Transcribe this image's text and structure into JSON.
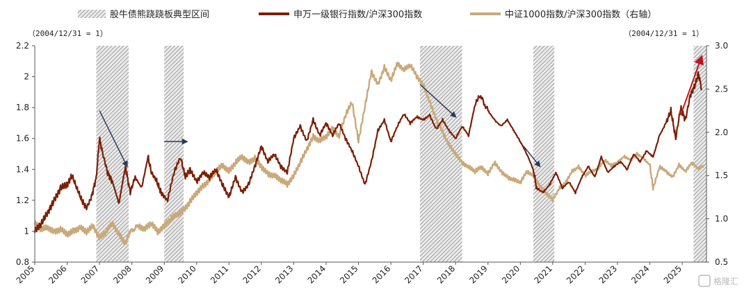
{
  "chart_data": {
    "type": "line",
    "title": "",
    "legend": {
      "placement": "top",
      "shading_label": "股牛债熊跷跷板典型区间",
      "items": [
        {
          "name": "申万一级银行指数/沪深300指数",
          "color": "#7a1f06"
        },
        {
          "name": "中证1000指数/沪深300指数（右轴）",
          "color": "#c9a97a"
        }
      ]
    },
    "left_axis_note": "（2004/12/31 = 1）",
    "right_axis_note": "（2004/12/31 = 1）",
    "x_range": [
      2005,
      2025.75
    ],
    "x_ticks": [
      "2005",
      "2006",
      "2007",
      "2008",
      "2009",
      "2010",
      "2011",
      "2012",
      "2013",
      "2014",
      "2015",
      "2016",
      "2017",
      "2018",
      "2019",
      "2020",
      "2021",
      "2022",
      "2023",
      "2024",
      "2025"
    ],
    "y_left": {
      "range": [
        0.8,
        2.2
      ],
      "ticks": [
        "0.8",
        "1",
        "1.2",
        "1.4",
        "1.6",
        "1.8",
        "2",
        "2.2"
      ]
    },
    "y_right": {
      "range": [
        0.5,
        3.0
      ],
      "ticks": [
        "0.5",
        "1.0",
        "1.5",
        "2.0",
        "2.5",
        "3.0"
      ]
    },
    "grid": false,
    "shaded_periods": [
      [
        2006.9,
        2007.9
      ],
      [
        2009.0,
        2009.6
      ],
      [
        2016.9,
        2018.2
      ],
      [
        2020.4,
        2021.05
      ],
      [
        2025.35,
        2025.75
      ]
    ],
    "series": [
      {
        "name": "申万一级银行指数/沪深300指数",
        "axis": "left",
        "color": "#7a1f06",
        "points": [
          [
            2005.0,
            1.0
          ],
          [
            2005.2,
            1.05
          ],
          [
            2005.4,
            1.12
          ],
          [
            2005.6,
            1.2
          ],
          [
            2005.8,
            1.28
          ],
          [
            2006.0,
            1.3
          ],
          [
            2006.15,
            1.36
          ],
          [
            2006.3,
            1.28
          ],
          [
            2006.45,
            1.2
          ],
          [
            2006.6,
            1.15
          ],
          [
            2006.75,
            1.22
          ],
          [
            2006.9,
            1.35
          ],
          [
            2007.0,
            1.6
          ],
          [
            2007.1,
            1.5
          ],
          [
            2007.25,
            1.38
          ],
          [
            2007.4,
            1.32
          ],
          [
            2007.6,
            1.18
          ],
          [
            2007.8,
            1.42
          ],
          [
            2007.95,
            1.25
          ],
          [
            2008.1,
            1.35
          ],
          [
            2008.3,
            1.28
          ],
          [
            2008.5,
            1.48
          ],
          [
            2008.6,
            1.38
          ],
          [
            2008.75,
            1.33
          ],
          [
            2008.9,
            1.25
          ],
          [
            2009.1,
            1.2
          ],
          [
            2009.3,
            1.38
          ],
          [
            2009.5,
            1.48
          ],
          [
            2009.65,
            1.35
          ],
          [
            2009.8,
            1.4
          ],
          [
            2010.0,
            1.32
          ],
          [
            2010.2,
            1.38
          ],
          [
            2010.4,
            1.35
          ],
          [
            2010.6,
            1.4
          ],
          [
            2010.8,
            1.3
          ],
          [
            2011.0,
            1.22
          ],
          [
            2011.2,
            1.35
          ],
          [
            2011.4,
            1.25
          ],
          [
            2011.6,
            1.3
          ],
          [
            2011.8,
            1.42
          ],
          [
            2012.0,
            1.55
          ],
          [
            2012.2,
            1.45
          ],
          [
            2012.4,
            1.5
          ],
          [
            2012.6,
            1.42
          ],
          [
            2012.8,
            1.38
          ],
          [
            2013.0,
            1.6
          ],
          [
            2013.2,
            1.68
          ],
          [
            2013.4,
            1.58
          ],
          [
            2013.6,
            1.72
          ],
          [
            2013.8,
            1.62
          ],
          [
            2014.0,
            1.7
          ],
          [
            2014.2,
            1.62
          ],
          [
            2014.4,
            1.7
          ],
          [
            2014.6,
            1.6
          ],
          [
            2014.8,
            1.52
          ],
          [
            2015.0,
            1.42
          ],
          [
            2015.2,
            1.3
          ],
          [
            2015.4,
            1.45
          ],
          [
            2015.6,
            1.65
          ],
          [
            2015.8,
            1.72
          ],
          [
            2016.0,
            1.58
          ],
          [
            2016.2,
            1.68
          ],
          [
            2016.4,
            1.76
          ],
          [
            2016.6,
            1.7
          ],
          [
            2016.8,
            1.74
          ],
          [
            2017.0,
            1.72
          ],
          [
            2017.2,
            1.75
          ],
          [
            2017.4,
            1.66
          ],
          [
            2017.6,
            1.72
          ],
          [
            2017.8,
            1.65
          ],
          [
            2018.0,
            1.6
          ],
          [
            2018.2,
            1.68
          ],
          [
            2018.4,
            1.62
          ],
          [
            2018.6,
            1.82
          ],
          [
            2018.75,
            1.88
          ],
          [
            2019.0,
            1.78
          ],
          [
            2019.2,
            1.72
          ],
          [
            2019.4,
            1.68
          ],
          [
            2019.6,
            1.72
          ],
          [
            2019.8,
            1.65
          ],
          [
            2020.0,
            1.58
          ],
          [
            2020.2,
            1.5
          ],
          [
            2020.4,
            1.4
          ],
          [
            2020.5,
            1.28
          ],
          [
            2020.7,
            1.25
          ],
          [
            2020.9,
            1.3
          ],
          [
            2021.1,
            1.38
          ],
          [
            2021.3,
            1.28
          ],
          [
            2021.5,
            1.32
          ],
          [
            2021.7,
            1.25
          ],
          [
            2021.9,
            1.35
          ],
          [
            2022.1,
            1.42
          ],
          [
            2022.3,
            1.35
          ],
          [
            2022.5,
            1.48
          ],
          [
            2022.7,
            1.38
          ],
          [
            2022.9,
            1.42
          ],
          [
            2023.1,
            1.45
          ],
          [
            2023.3,
            1.4
          ],
          [
            2023.5,
            1.5
          ],
          [
            2023.7,
            1.45
          ],
          [
            2023.9,
            1.52
          ],
          [
            2024.1,
            1.48
          ],
          [
            2024.3,
            1.62
          ],
          [
            2024.5,
            1.7
          ],
          [
            2024.65,
            1.78
          ],
          [
            2024.8,
            1.6
          ],
          [
            2024.95,
            1.8
          ],
          [
            2025.1,
            1.72
          ],
          [
            2025.25,
            1.88
          ],
          [
            2025.4,
            1.95
          ],
          [
            2025.5,
            2.02
          ],
          [
            2025.6,
            1.92
          ]
        ]
      },
      {
        "name": "中证1000指数/沪深300指数（右轴）",
        "axis": "right",
        "color": "#c9a97a",
        "points": [
          [
            2005.0,
            0.95
          ],
          [
            2005.2,
            0.88
          ],
          [
            2005.4,
            0.9
          ],
          [
            2005.6,
            0.85
          ],
          [
            2005.8,
            0.88
          ],
          [
            2006.0,
            0.82
          ],
          [
            2006.2,
            0.86
          ],
          [
            2006.4,
            0.9
          ],
          [
            2006.6,
            0.85
          ],
          [
            2006.8,
            0.92
          ],
          [
            2007.0,
            0.78
          ],
          [
            2007.2,
            0.85
          ],
          [
            2007.4,
            0.95
          ],
          [
            2007.6,
            0.82
          ],
          [
            2007.8,
            0.72
          ],
          [
            2007.95,
            0.85
          ],
          [
            2008.2,
            0.92
          ],
          [
            2008.4,
            0.88
          ],
          [
            2008.6,
            0.95
          ],
          [
            2008.8,
            0.85
          ],
          [
            2009.0,
            0.92
          ],
          [
            2009.2,
            1.0
          ],
          [
            2009.4,
            1.05
          ],
          [
            2009.6,
            1.1
          ],
          [
            2009.8,
            1.2
          ],
          [
            2010.0,
            1.3
          ],
          [
            2010.2,
            1.38
          ],
          [
            2010.4,
            1.45
          ],
          [
            2010.6,
            1.55
          ],
          [
            2010.8,
            1.62
          ],
          [
            2011.0,
            1.55
          ],
          [
            2011.2,
            1.65
          ],
          [
            2011.4,
            1.72
          ],
          [
            2011.6,
            1.65
          ],
          [
            2011.8,
            1.7
          ],
          [
            2012.0,
            1.6
          ],
          [
            2012.2,
            1.52
          ],
          [
            2012.4,
            1.5
          ],
          [
            2012.6,
            1.45
          ],
          [
            2012.8,
            1.4
          ],
          [
            2013.0,
            1.5
          ],
          [
            2013.2,
            1.65
          ],
          [
            2013.4,
            1.8
          ],
          [
            2013.6,
            1.95
          ],
          [
            2013.8,
            1.9
          ],
          [
            2014.0,
            1.95
          ],
          [
            2014.2,
            2.05
          ],
          [
            2014.4,
            1.95
          ],
          [
            2014.6,
            2.2
          ],
          [
            2014.8,
            2.35
          ],
          [
            2015.0,
            1.9
          ],
          [
            2015.2,
            2.3
          ],
          [
            2015.4,
            2.7
          ],
          [
            2015.6,
            2.55
          ],
          [
            2015.8,
            2.75
          ],
          [
            2016.0,
            2.6
          ],
          [
            2016.2,
            2.8
          ],
          [
            2016.4,
            2.72
          ],
          [
            2016.6,
            2.78
          ],
          [
            2016.8,
            2.65
          ],
          [
            2017.0,
            2.55
          ],
          [
            2017.2,
            2.35
          ],
          [
            2017.4,
            2.15
          ],
          [
            2017.6,
            2.0
          ],
          [
            2017.8,
            1.85
          ],
          [
            2018.0,
            1.75
          ],
          [
            2018.2,
            1.65
          ],
          [
            2018.4,
            1.6
          ],
          [
            2018.6,
            1.55
          ],
          [
            2018.8,
            1.6
          ],
          [
            2019.0,
            1.52
          ],
          [
            2019.2,
            1.65
          ],
          [
            2019.4,
            1.55
          ],
          [
            2019.6,
            1.48
          ],
          [
            2019.8,
            1.45
          ],
          [
            2020.0,
            1.42
          ],
          [
            2020.2,
            1.55
          ],
          [
            2020.4,
            1.5
          ],
          [
            2020.6,
            1.38
          ],
          [
            2020.8,
            1.3
          ],
          [
            2021.0,
            1.22
          ],
          [
            2021.2,
            1.35
          ],
          [
            2021.4,
            1.42
          ],
          [
            2021.6,
            1.55
          ],
          [
            2021.8,
            1.6
          ],
          [
            2022.0,
            1.5
          ],
          [
            2022.2,
            1.55
          ],
          [
            2022.4,
            1.58
          ],
          [
            2022.6,
            1.68
          ],
          [
            2022.8,
            1.62
          ],
          [
            2023.0,
            1.65
          ],
          [
            2023.2,
            1.72
          ],
          [
            2023.4,
            1.68
          ],
          [
            2023.6,
            1.75
          ],
          [
            2023.8,
            1.7
          ],
          [
            2024.0,
            1.62
          ],
          [
            2024.1,
            1.35
          ],
          [
            2024.3,
            1.6
          ],
          [
            2024.5,
            1.55
          ],
          [
            2024.7,
            1.48
          ],
          [
            2024.9,
            1.62
          ],
          [
            2025.1,
            1.55
          ],
          [
            2025.3,
            1.65
          ],
          [
            2025.5,
            1.58
          ],
          [
            2025.7,
            1.62
          ]
        ]
      }
    ],
    "annotations": [
      {
        "type": "arrow",
        "color": "#2b3a55",
        "from": [
          2007.0,
          1.78
        ],
        "to": [
          2007.85,
          1.42
        ]
      },
      {
        "type": "arrow",
        "color": "#2b3a55",
        "from": [
          2009.0,
          1.58
        ],
        "to": [
          2009.7,
          1.58
        ]
      },
      {
        "type": "arrow",
        "color": "#2b3a55",
        "from": [
          2016.9,
          1.95
        ],
        "to": [
          2018.0,
          1.74
        ]
      },
      {
        "type": "arrow",
        "color": "#2b3a55",
        "from": [
          2020.1,
          1.55
        ],
        "to": [
          2020.6,
          1.42
        ]
      },
      {
        "type": "arrow",
        "color": "#c0141c",
        "from": [
          2024.95,
          1.75
        ],
        "to": [
          2025.6,
          2.13
        ]
      }
    ],
    "colors": {
      "axis": "#555555",
      "text": "#222222",
      "hatch_line": "#9a9a9a",
      "hatch_bg": "#ececec"
    }
  },
  "watermark": {
    "text": "格隆汇"
  }
}
